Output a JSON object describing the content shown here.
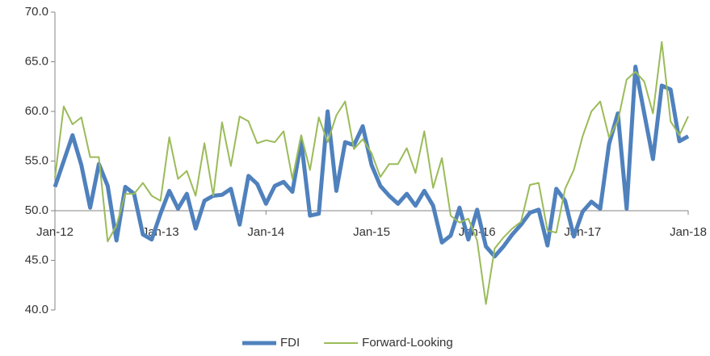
{
  "chart_data": {
    "type": "line",
    "categories": [
      "Jan-12",
      null,
      null,
      null,
      null,
      null,
      null,
      null,
      null,
      null,
      null,
      null,
      "Jan-13",
      null,
      null,
      null,
      null,
      null,
      null,
      null,
      null,
      null,
      null,
      null,
      "Jan-14",
      null,
      null,
      null,
      null,
      null,
      null,
      null,
      null,
      null,
      null,
      null,
      "Jan-15",
      null,
      null,
      null,
      null,
      null,
      null,
      null,
      null,
      null,
      null,
      null,
      "Jan-16",
      null,
      null,
      null,
      null,
      null,
      null,
      null,
      null,
      null,
      null,
      null,
      "Jan-17",
      null,
      null,
      null,
      null,
      null,
      null,
      null,
      null,
      null,
      null,
      null,
      "Jan-18"
    ],
    "series": [
      {
        "name": "FDI",
        "color": "#4f81bd",
        "values": [
          52.4,
          55,
          57.6,
          54.6,
          50.3,
          54.7,
          52.5,
          47,
          52.4,
          51.7,
          47.6,
          47.1,
          49.7,
          52,
          50.2,
          51.7,
          48.2,
          51,
          51.5,
          51.6,
          52.2,
          48.6,
          53.5,
          52.7,
          50.7,
          52.5,
          52.9,
          51.9,
          57,
          49.5,
          49.7,
          60,
          52,
          56.9,
          56.6,
          58.5,
          54.6,
          52.5,
          51.5,
          50.7,
          51.7,
          50.5,
          52,
          50.5,
          46.8,
          47.5,
          50.3,
          47.1,
          50.1,
          46.4,
          45.4,
          46.4,
          47.6,
          48.6,
          49.8,
          50.1,
          46.5,
          52.2,
          51,
          47.4,
          49.9,
          50.9,
          50.2,
          56.7,
          59.8,
          50.2,
          64.5,
          59.8,
          55.2,
          62.6,
          62.2,
          57,
          57.5
        ]
      },
      {
        "name": "Forward-Looking",
        "color": "#9bbb59",
        "values": [
          53.3,
          60.5,
          58.7,
          59.4,
          55.4,
          55.4,
          46.9,
          48.5,
          51.7,
          51.7,
          52.8,
          51.5,
          51,
          57.4,
          53.2,
          54,
          51.5,
          56.8,
          51.5,
          58.9,
          54.5,
          59.5,
          59,
          56.8,
          57.1,
          56.9,
          58,
          53.2,
          57.6,
          54.1,
          59.4,
          56.9,
          59.6,
          61,
          56.2,
          57.2,
          55.8,
          53.4,
          54.7,
          54.7,
          56.3,
          53.8,
          58,
          52.3,
          55.3,
          49.5,
          48.8,
          49.2,
          47,
          40.6,
          46.2,
          47.3,
          48.2,
          48.9,
          52.6,
          52.8,
          48,
          47.8,
          52.2,
          54.1,
          57.5,
          60,
          61,
          57.4,
          59,
          63.2,
          64,
          63,
          59.8,
          67,
          59,
          57.6,
          59.5
        ]
      }
    ],
    "ylim": [
      40,
      70
    ],
    "yticks": [
      {
        "value": 40,
        "label": "40.0"
      },
      {
        "value": 45,
        "label": "45.0"
      },
      {
        "value": 50,
        "label": "50.0"
      },
      {
        "value": 55,
        "label": "55.0"
      },
      {
        "value": 60,
        "label": "60.0"
      },
      {
        "value": 65,
        "label": "65.0"
      },
      {
        "value": 70,
        "label": "70.0"
      }
    ],
    "x_axis_crosses": 50,
    "grid": false,
    "legend": "bottom"
  }
}
